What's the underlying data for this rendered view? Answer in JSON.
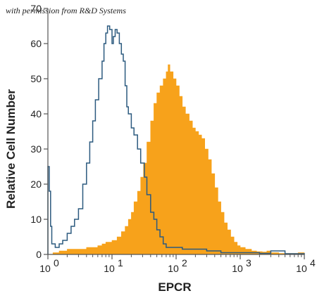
{
  "credit": "with permission from R&D Systems",
  "chart_data": {
    "type": "area",
    "xlabel": "EPCR",
    "ylabel": "Relative Cell Number",
    "x_scale": "log",
    "xlim": [
      1,
      10000
    ],
    "ylim": [
      0,
      70
    ],
    "x_ticks": [
      {
        "value": 1,
        "base": "10",
        "exp": "0"
      },
      {
        "value": 10,
        "base": "10",
        "exp": "1"
      },
      {
        "value": 100,
        "base": "10",
        "exp": "2"
      },
      {
        "value": 1000,
        "base": "10",
        "exp": "3"
      },
      {
        "value": 10000,
        "base": "10",
        "exp": "4"
      }
    ],
    "y_ticks": [
      0,
      10,
      20,
      30,
      40,
      50,
      60,
      70
    ],
    "grid": false,
    "colors": {
      "stained": "#f7a21b",
      "control": "#2c5a7f"
    },
    "series": [
      {
        "style": "filled",
        "color": "#f7a21b",
        "points": [
          [
            1.0,
            0
          ],
          [
            1.2,
            0.5
          ],
          [
            1.5,
            1
          ],
          [
            2,
            1.5
          ],
          [
            3,
            1.5
          ],
          [
            4,
            2
          ],
          [
            5,
            2
          ],
          [
            6,
            2.5
          ],
          [
            7,
            3
          ],
          [
            8,
            3.5
          ],
          [
            10,
            4
          ],
          [
            12,
            5
          ],
          [
            14,
            6.5
          ],
          [
            16,
            8
          ],
          [
            18,
            10
          ],
          [
            20,
            12
          ],
          [
            22,
            15
          ],
          [
            25,
            18
          ],
          [
            28,
            22
          ],
          [
            31,
            26
          ],
          [
            35,
            32
          ],
          [
            40,
            38
          ],
          [
            45,
            43
          ],
          [
            50,
            46
          ],
          [
            56,
            48
          ],
          [
            63,
            50
          ],
          [
            70,
            52
          ],
          [
            75,
            54
          ],
          [
            80,
            52
          ],
          [
            90,
            50
          ],
          [
            100,
            48
          ],
          [
            112,
            45
          ],
          [
            125,
            42
          ],
          [
            140,
            40
          ],
          [
            160,
            38
          ],
          [
            180,
            36
          ],
          [
            200,
            35
          ],
          [
            224,
            34
          ],
          [
            250,
            33
          ],
          [
            280,
            30
          ],
          [
            316,
            27
          ],
          [
            355,
            23
          ],
          [
            400,
            19
          ],
          [
            450,
            15
          ],
          [
            500,
            12
          ],
          [
            560,
            9
          ],
          [
            630,
            7
          ],
          [
            710,
            5
          ],
          [
            800,
            3.5
          ],
          [
            900,
            2.5
          ],
          [
            1000,
            2
          ],
          [
            1200,
            1.5
          ],
          [
            1500,
            1
          ],
          [
            1800,
            0.8
          ],
          [
            2200,
            0.7
          ],
          [
            2600,
            1
          ],
          [
            3000,
            0.5
          ],
          [
            4000,
            0.3
          ],
          [
            6000,
            0.3
          ],
          [
            8000,
            0.5
          ],
          [
            10000,
            0
          ]
        ]
      },
      {
        "style": "outline",
        "color": "#2c5a7f",
        "points": [
          [
            1.0,
            25
          ],
          [
            1.05,
            18
          ],
          [
            1.1,
            8
          ],
          [
            1.15,
            3
          ],
          [
            1.3,
            2
          ],
          [
            1.5,
            3
          ],
          [
            1.7,
            4
          ],
          [
            2,
            6
          ],
          [
            2.3,
            8
          ],
          [
            2.6,
            10
          ],
          [
            3,
            13
          ],
          [
            3.5,
            20
          ],
          [
            4,
            26
          ],
          [
            4.5,
            32
          ],
          [
            5,
            38
          ],
          [
            5.5,
            44
          ],
          [
            6.2,
            50
          ],
          [
            7,
            55
          ],
          [
            7.5,
            60
          ],
          [
            8,
            63
          ],
          [
            8.5,
            65
          ],
          [
            9.2,
            64
          ],
          [
            10,
            60
          ],
          [
            10.5,
            62
          ],
          [
            11.2,
            64
          ],
          [
            12,
            63
          ],
          [
            13,
            60
          ],
          [
            14,
            57
          ],
          [
            15,
            55
          ],
          [
            16,
            48
          ],
          [
            17,
            42
          ],
          [
            18,
            40
          ],
          [
            20,
            36
          ],
          [
            22,
            34
          ],
          [
            25,
            30
          ],
          [
            28,
            26
          ],
          [
            32,
            22
          ],
          [
            35,
            17
          ],
          [
            40,
            12
          ],
          [
            45,
            10
          ],
          [
            50,
            7
          ],
          [
            56,
            5
          ],
          [
            63,
            3
          ],
          [
            70,
            2
          ],
          [
            80,
            2
          ],
          [
            100,
            2
          ],
          [
            125,
            1.5
          ],
          [
            150,
            1.5
          ],
          [
            200,
            1.5
          ],
          [
            300,
            1
          ],
          [
            500,
            0.5
          ],
          [
            1000,
            0.5
          ],
          [
            2000,
            0.3
          ],
          [
            3000,
            1
          ],
          [
            5000,
            0.2
          ],
          [
            10000,
            0
          ]
        ]
      }
    ]
  }
}
